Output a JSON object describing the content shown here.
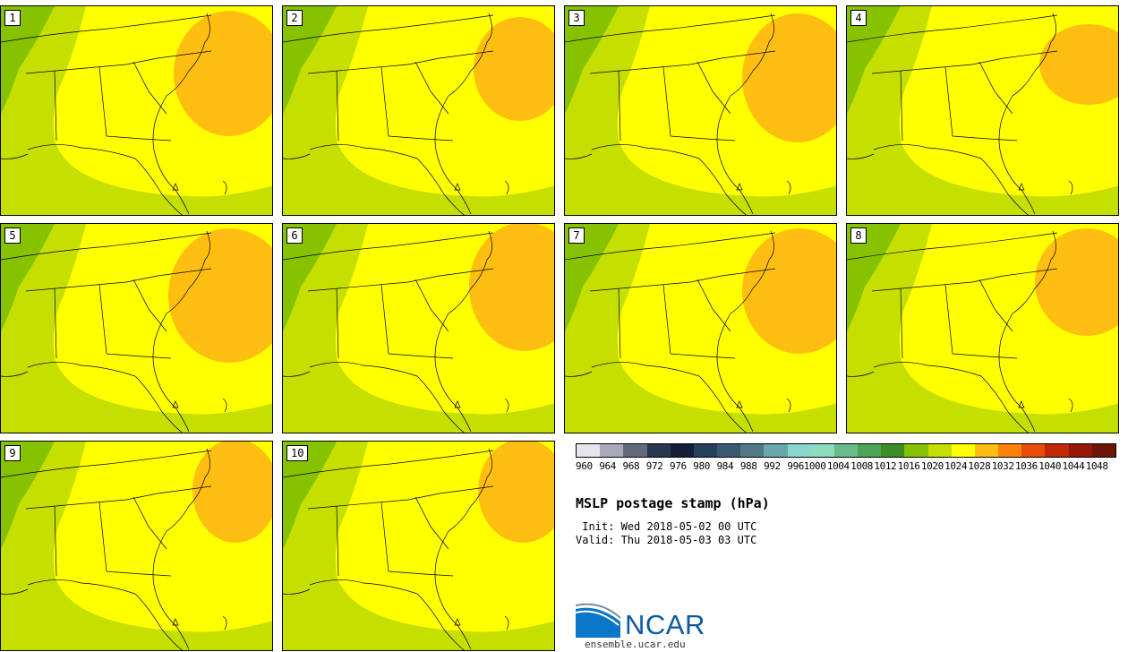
{
  "panels": [
    "1",
    "2",
    "3",
    "4",
    "5",
    "6",
    "7",
    "8",
    "9",
    "10"
  ],
  "legend": {
    "ticks": [
      "960",
      "964",
      "968",
      "972",
      "976",
      "980",
      "984",
      "988",
      "992",
      "996",
      "1000",
      "1004",
      "1008",
      "1012",
      "1016",
      "1020",
      "1024",
      "1028",
      "1032",
      "1036",
      "1040",
      "1044",
      "1048"
    ],
    "colors": [
      "#e6e6ea",
      "#a8aab8",
      "#646a7e",
      "#283650",
      "#141e38",
      "#24405a",
      "#3a5a72",
      "#4e7a88",
      "#6aa6aa",
      "#88d6cc",
      "#8adcbc",
      "#68bc8a",
      "#4ea25a",
      "#3e8e26",
      "#86c200",
      "#c4df00",
      "#ffff00",
      "#ffbe10",
      "#ff8208",
      "#e84c08",
      "#c02806",
      "#961608",
      "#6e1606"
    ]
  },
  "title": "MSLP postage stamp (hPa)",
  "init": " Init: Wed 2018-05-02 00 UTC",
  "valid": "Valid: Thu 2018-05-03 03 UTC",
  "logo": {
    "text": "NCAR",
    "url": "ensemble.ucar.edu",
    "color": "#0a5aa0"
  },
  "field_colors": {
    "c1016": "#86c200",
    "c1020": "#c4df00",
    "c1024": "#ffff00",
    "c1028": "#ffbe10"
  }
}
